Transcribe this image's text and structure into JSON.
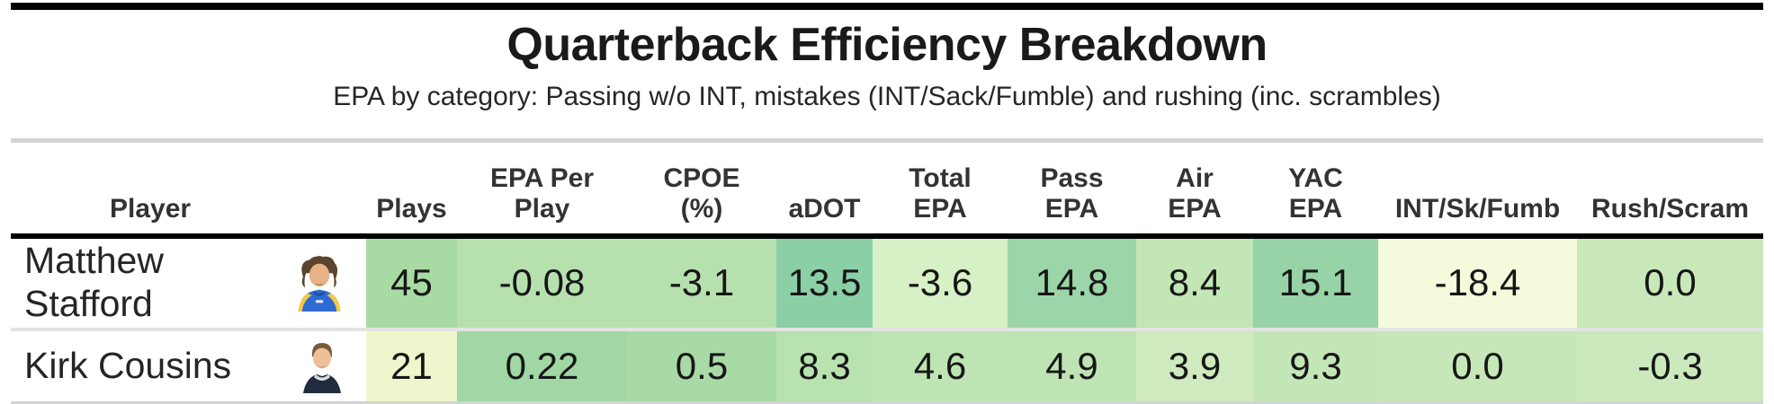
{
  "title": "Quarterback Efficiency Breakdown",
  "subtitle": "EPA by category: Passing w/o INT, mistakes (INT/Sack/Fumble) and rushing (inc. scrambles)",
  "table": {
    "columns": [
      {
        "key": "player",
        "label": "Player"
      },
      {
        "key": "plays",
        "label": "Plays"
      },
      {
        "key": "epa_per_play",
        "label": "EPA Per\nPlay"
      },
      {
        "key": "cpoe",
        "label": "CPOE\n(%)"
      },
      {
        "key": "adot",
        "label": "aDOT"
      },
      {
        "key": "total_epa",
        "label": "Total\nEPA"
      },
      {
        "key": "pass_epa",
        "label": "Pass\nEPA"
      },
      {
        "key": "air_epa",
        "label": "Air\nEPA"
      },
      {
        "key": "yac_epa",
        "label": "YAC\nEPA"
      },
      {
        "key": "int_sk_fumb",
        "label": "INT/Sk/Fumb"
      },
      {
        "key": "rush_scram",
        "label": "Rush/Scram"
      }
    ],
    "rows": [
      {
        "player": "Matthew Stafford",
        "avatar": "stafford-headshot",
        "cells": [
          {
            "value": "45",
            "bg": "#a8dba3"
          },
          {
            "value": "-0.08",
            "bg": "#b6e1ae"
          },
          {
            "value": "-3.1",
            "bg": "#b6e1ae"
          },
          {
            "value": "13.5",
            "bg": "#8bcfa7"
          },
          {
            "value": "-3.6",
            "bg": "#d8f0c6"
          },
          {
            "value": "14.8",
            "bg": "#9cd5a7"
          },
          {
            "value": "8.4",
            "bg": "#c2e6b5"
          },
          {
            "value": "15.1",
            "bg": "#97d3a6"
          },
          {
            "value": "-18.4",
            "bg": "#f4fadb"
          },
          {
            "value": "0.0",
            "bg": "#c8e8ba"
          }
        ]
      },
      {
        "player": "Kirk Cousins",
        "avatar": "cousins-headshot",
        "cells": [
          {
            "value": "21",
            "bg": "#eff6cd"
          },
          {
            "value": "0.22",
            "bg": "#a0d7a4"
          },
          {
            "value": "0.5",
            "bg": "#a8daa6"
          },
          {
            "value": "8.3",
            "bg": "#b8e2af"
          },
          {
            "value": "4.6",
            "bg": "#bee4b3"
          },
          {
            "value": "4.9",
            "bg": "#bee4b3"
          },
          {
            "value": "3.9",
            "bg": "#cfeabf"
          },
          {
            "value": "9.3",
            "bg": "#c3e6b6"
          },
          {
            "value": "0.0",
            "bg": "#c6e7b8"
          },
          {
            "value": "-0.3",
            "bg": "#cbe9bc"
          }
        ]
      }
    ]
  },
  "chart_data": {
    "type": "table",
    "title": "Quarterback Efficiency Breakdown",
    "subtitle": "EPA by category: Passing w/o INT, mistakes (INT/Sack/Fumble) and rushing (inc. scrambles)",
    "columns": [
      "Player",
      "Plays",
      "EPA Per Play",
      "CPOE (%)",
      "aDOT",
      "Total EPA",
      "Pass EPA",
      "Air EPA",
      "YAC EPA",
      "INT/Sk/Fumb",
      "Rush/Scram"
    ],
    "rows": [
      {
        "player": "Matthew Stafford",
        "values": [
          45,
          -0.08,
          -3.1,
          13.5,
          -3.6,
          14.8,
          8.4,
          15.1,
          -18.4,
          0.0
        ]
      },
      {
        "player": "Kirk Cousins",
        "values": [
          21,
          0.22,
          0.5,
          8.3,
          4.6,
          4.9,
          3.9,
          9.3,
          0.0,
          -0.3
        ]
      }
    ],
    "layout_hints": {
      "cell_color_scale": "pale yellow-green (#f4fadb) for lowest values to teal-green (#8bcfa7) for highest, per column",
      "player_column_background": "#ffffff"
    }
  },
  "colors": {
    "rule_heavy": "#000000",
    "rule_light": "#d4d4d4",
    "row_separator": "#e3e3e3",
    "title_text": "#1a1a1a",
    "header_text": "#333333",
    "cell_text": "#161616"
  }
}
